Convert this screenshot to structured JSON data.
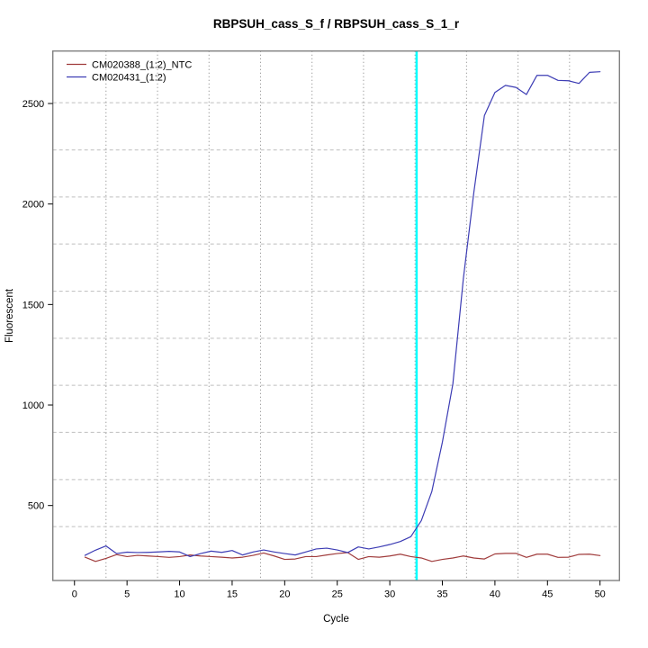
{
  "title": "RBPSUH_cass_S_f / RBPSUH_cass_S_1_r",
  "colors": {
    "background": "#ffffff",
    "plot_border": "#808080",
    "vertical_grid": "#7f7f7f",
    "horizontal_grid": "#bfbfbf",
    "threshold": "#00ffff",
    "text": "#000000"
  },
  "chart_data": {
    "type": "line",
    "title": "RBPSUH_cass_S_f / RBPSUH_cass_S_1_r",
    "xlabel": "Cycle",
    "ylabel": "Fluorescent",
    "xlim": [
      -2.06,
      51.85
    ],
    "ylim": [
      127,
      2761
    ],
    "x_ticks": [
      0,
      5,
      10,
      15,
      20,
      25,
      30,
      35,
      40,
      45,
      50
    ],
    "y_ticks": [
      500,
      1000,
      1500,
      2000,
      2500
    ],
    "grid_on": true,
    "grid_x_lines": [
      3.0,
      7.9,
      12.8,
      17.7,
      22.6,
      27.5,
      32.4,
      37.3,
      42.2,
      47.1
    ],
    "grid_y_lines": [
      395,
      629,
      864,
      1098,
      1332,
      1566,
      1801,
      2035,
      2269,
      2504
    ],
    "threshold_line": {
      "x": 32.55,
      "color": "#00ffff"
    },
    "legend_position": "top-left",
    "x": [
      1,
      2,
      3,
      4,
      5,
      6,
      7,
      8,
      9,
      10,
      11,
      12,
      13,
      14,
      15,
      16,
      17,
      18,
      19,
      20,
      21,
      22,
      23,
      24,
      25,
      26,
      27,
      28,
      29,
      30,
      31,
      32,
      33,
      34,
      35,
      36,
      37,
      38,
      39,
      40,
      41,
      42,
      43,
      44,
      45,
      46,
      47,
      48,
      49,
      50
    ],
    "series": [
      {
        "name": "CM020388_(1:2)_NTC",
        "color": "#a03c3c",
        "values": [
          243,
          222,
          237,
          256,
          246,
          252,
          249,
          246,
          242,
          246,
          254,
          249,
          246,
          243,
          239,
          243,
          252,
          264,
          249,
          232,
          234,
          246,
          246,
          254,
          261,
          266,
          232,
          246,
          243,
          249,
          258,
          246,
          239,
          222,
          232,
          239,
          249,
          239,
          234,
          259,
          262,
          262,
          242,
          258,
          258,
          242,
          243,
          257,
          258,
          251
        ]
      },
      {
        "name": "CM020431_(1:2)",
        "color": "#3c3cb4",
        "values": [
          252,
          278,
          299,
          261,
          268,
          266,
          267,
          269,
          272,
          269,
          246,
          261,
          273,
          267,
          276,
          254,
          269,
          279,
          269,
          261,
          254,
          269,
          284,
          288,
          279,
          266,
          294,
          284,
          294,
          306,
          321,
          345,
          425,
          570,
          815,
          1105,
          1630,
          2060,
          2440,
          2555,
          2590,
          2580,
          2545,
          2640,
          2640,
          2615,
          2613,
          2600,
          2655,
          2658
        ]
      }
    ]
  }
}
